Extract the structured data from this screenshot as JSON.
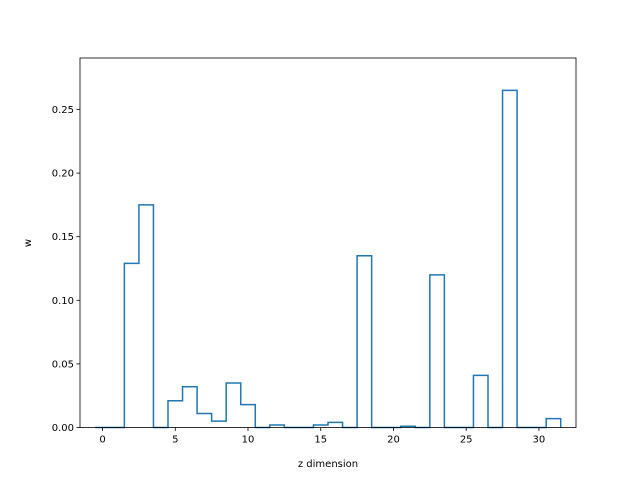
{
  "chart_data": {
    "type": "step",
    "xlabel": "z dimension",
    "ylabel": "w",
    "xlim": [
      -1.55,
      32.55
    ],
    "ylim": [
      0,
      0.2905
    ],
    "x_ticks": [
      0,
      5,
      10,
      15,
      20,
      25,
      30
    ],
    "x_tick_labels": [
      "0",
      "5",
      "10",
      "15",
      "20",
      "25",
      "30"
    ],
    "y_ticks": [
      0,
      0.05,
      0.1,
      0.15,
      0.2,
      0.25
    ],
    "y_tick_labels": [
      "0.00",
      "0.05",
      "0.10",
      "0.15",
      "0.20",
      "0.25"
    ],
    "grid": false,
    "line_color": "#1f77b4",
    "x": [
      0,
      1,
      2,
      3,
      4,
      5,
      6,
      7,
      8,
      9,
      10,
      11,
      12,
      13,
      14,
      15,
      16,
      17,
      18,
      19,
      20,
      21,
      22,
      23,
      24,
      25,
      26,
      27,
      28,
      29,
      30,
      31
    ],
    "values": [
      0.0,
      0.0,
      0.129,
      0.175,
      0.0,
      0.021,
      0.032,
      0.011,
      0.005,
      0.035,
      0.018,
      0.0,
      0.002,
      0.0,
      0.0,
      0.002,
      0.004,
      0.0,
      0.135,
      0.0,
      0.0,
      0.001,
      0.0,
      0.12,
      0.0,
      0.0,
      0.041,
      0.0,
      0.265,
      0.0,
      0.0,
      0.007
    ]
  }
}
